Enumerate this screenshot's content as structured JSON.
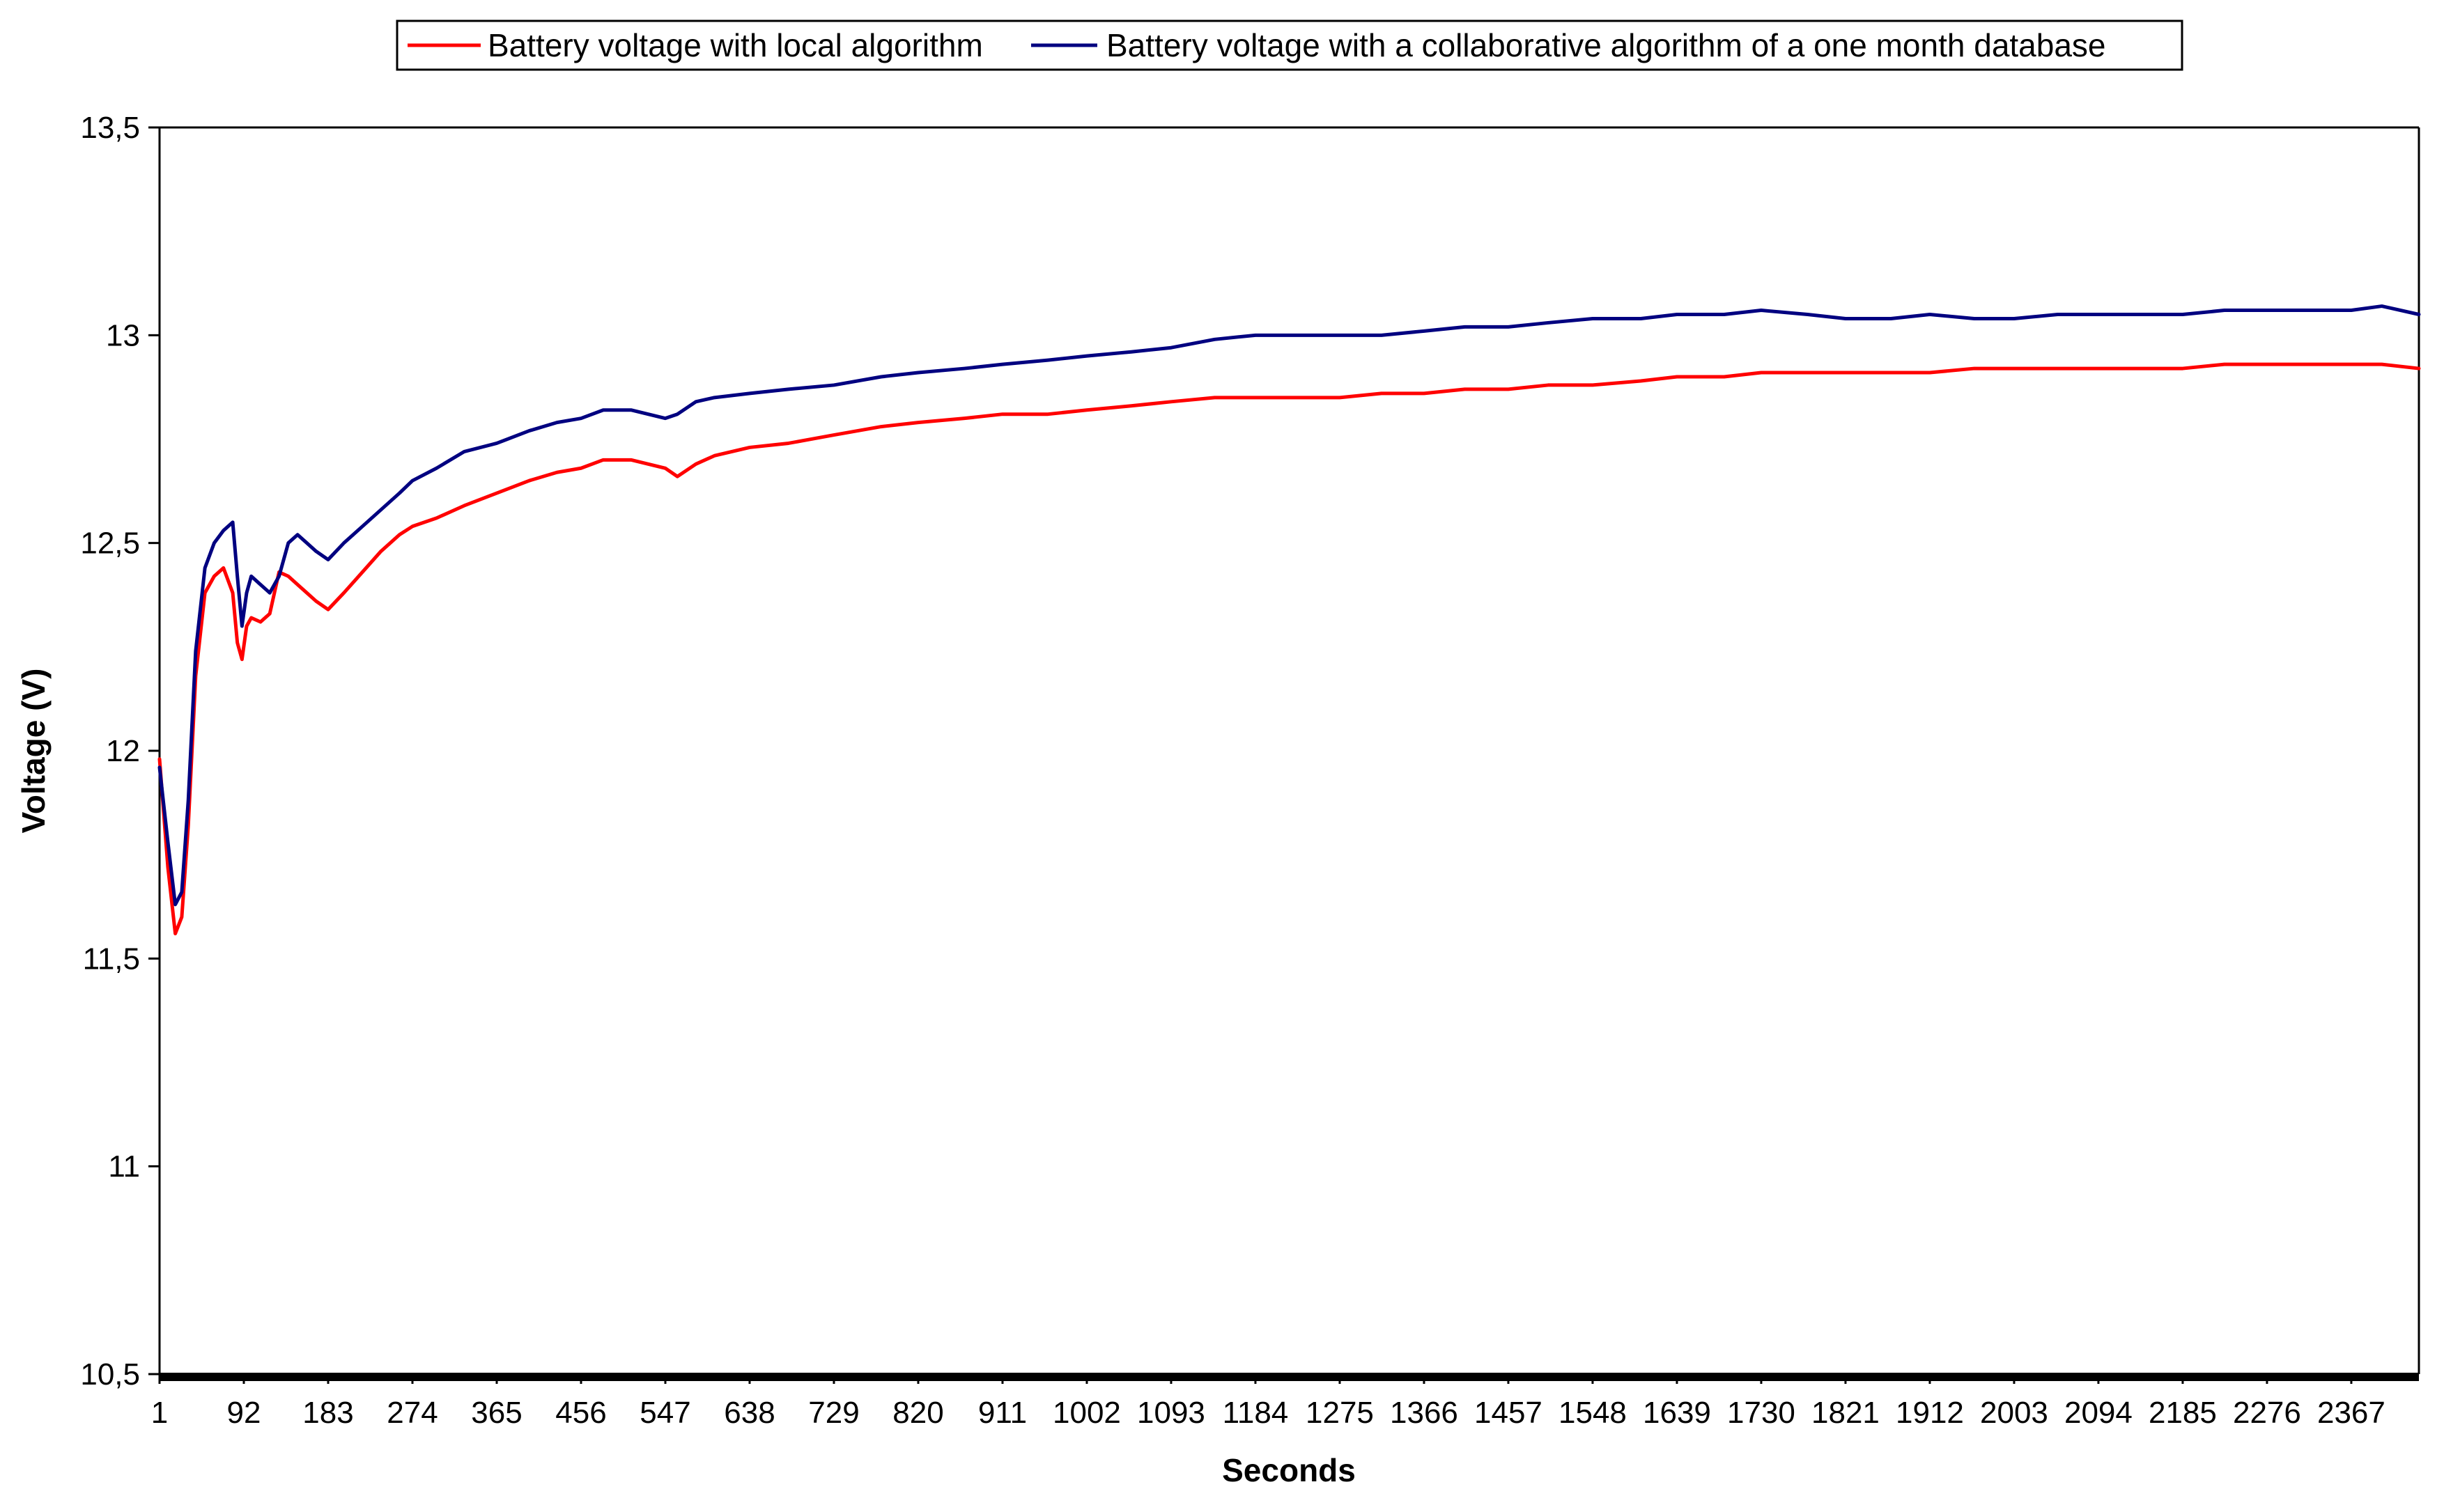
{
  "chart_data": {
    "type": "line",
    "title": "",
    "xlabel": "Seconds",
    "ylabel": "Voltage (V)",
    "xlim": [
      1,
      2440
    ],
    "ylim": [
      10.5,
      13.5
    ],
    "grid": false,
    "legend_position": "top",
    "y_ticks": [
      "10,5",
      "11",
      "11,5",
      "12",
      "12,5",
      "13",
      "13,5"
    ],
    "y_tick_values": [
      10.5,
      11,
      11.5,
      12,
      12.5,
      13,
      13.5
    ],
    "x_ticks": [
      "1",
      "92",
      "183",
      "274",
      "365",
      "456",
      "547",
      "638",
      "729",
      "820",
      "911",
      "1002",
      "1093",
      "1184",
      "1275",
      "1366",
      "1457",
      "1548",
      "1639",
      "1730",
      "1821",
      "1912",
      "2003",
      "2094",
      "2185",
      "2276",
      "2367"
    ],
    "x_tick_values": [
      1,
      92,
      183,
      274,
      365,
      456,
      547,
      638,
      729,
      820,
      911,
      1002,
      1093,
      1184,
      1275,
      1366,
      1457,
      1548,
      1639,
      1730,
      1821,
      1912,
      2003,
      2094,
      2185,
      2276,
      2367
    ],
    "series": [
      {
        "name": "Battery voltage with local algorithm",
        "color": "#ff0000",
        "x": [
          1,
          10,
          18,
          25,
          32,
          40,
          50,
          60,
          70,
          80,
          85,
          90,
          95,
          100,
          110,
          120,
          130,
          140,
          150,
          160,
          170,
          183,
          200,
          220,
          240,
          260,
          274,
          300,
          330,
          365,
          400,
          430,
          456,
          480,
          510,
          547,
          560,
          580,
          600,
          638,
          680,
          729,
          780,
          820,
          870,
          911,
          960,
          1002,
          1050,
          1093,
          1140,
          1184,
          1230,
          1275,
          1320,
          1366,
          1410,
          1457,
          1500,
          1548,
          1600,
          1639,
          1690,
          1730,
          1780,
          1821,
          1870,
          1912,
          1960,
          2003,
          2050,
          2094,
          2140,
          2185,
          2230,
          2276,
          2320,
          2367,
          2400,
          2440
        ],
        "values": [
          11.98,
          11.72,
          11.56,
          11.6,
          11.82,
          12.18,
          12.38,
          12.42,
          12.44,
          12.38,
          12.26,
          12.22,
          12.3,
          12.32,
          12.31,
          12.33,
          12.43,
          12.42,
          12.4,
          12.38,
          12.36,
          12.34,
          12.38,
          12.43,
          12.48,
          12.52,
          12.54,
          12.56,
          12.59,
          12.62,
          12.65,
          12.67,
          12.68,
          12.7,
          12.7,
          12.68,
          12.66,
          12.69,
          12.71,
          12.73,
          12.74,
          12.76,
          12.78,
          12.79,
          12.8,
          12.81,
          12.81,
          12.82,
          12.83,
          12.84,
          12.85,
          12.85,
          12.85,
          12.85,
          12.86,
          12.86,
          12.87,
          12.87,
          12.88,
          12.88,
          12.89,
          12.9,
          12.9,
          12.91,
          12.91,
          12.91,
          12.91,
          12.91,
          12.92,
          12.92,
          12.92,
          12.92,
          12.92,
          12.92,
          12.93,
          12.93,
          12.93,
          12.93,
          12.93,
          12.92
        ]
      },
      {
        "name": "Battery voltage with a collaborative algorithm of a one month database",
        "color": "#000080",
        "x": [
          1,
          10,
          18,
          25,
          32,
          40,
          50,
          60,
          70,
          80,
          85,
          90,
          95,
          100,
          110,
          120,
          130,
          140,
          150,
          160,
          170,
          183,
          200,
          220,
          240,
          260,
          274,
          300,
          330,
          365,
          400,
          430,
          456,
          480,
          510,
          547,
          560,
          580,
          600,
          638,
          680,
          729,
          780,
          820,
          870,
          911,
          960,
          1002,
          1050,
          1093,
          1140,
          1184,
          1230,
          1275,
          1320,
          1366,
          1410,
          1457,
          1500,
          1548,
          1600,
          1639,
          1690,
          1730,
          1780,
          1821,
          1870,
          1912,
          1960,
          2003,
          2050,
          2094,
          2140,
          2185,
          2230,
          2276,
          2320,
          2367,
          2400,
          2440
        ],
        "values": [
          11.96,
          11.78,
          11.63,
          11.66,
          11.88,
          12.24,
          12.44,
          12.5,
          12.53,
          12.55,
          12.42,
          12.3,
          12.38,
          12.42,
          12.4,
          12.38,
          12.42,
          12.5,
          12.52,
          12.5,
          12.48,
          12.46,
          12.5,
          12.54,
          12.58,
          12.62,
          12.65,
          12.68,
          12.72,
          12.74,
          12.77,
          12.79,
          12.8,
          12.82,
          12.82,
          12.8,
          12.81,
          12.84,
          12.85,
          12.86,
          12.87,
          12.88,
          12.9,
          12.91,
          12.92,
          12.93,
          12.94,
          12.95,
          12.96,
          12.97,
          12.99,
          13.0,
          13.0,
          13.0,
          13.0,
          13.01,
          13.02,
          13.02,
          13.03,
          13.04,
          13.04,
          13.05,
          13.05,
          13.06,
          13.05,
          13.04,
          13.04,
          13.05,
          13.04,
          13.04,
          13.05,
          13.05,
          13.05,
          13.05,
          13.06,
          13.06,
          13.06,
          13.06,
          13.07,
          13.05
        ]
      }
    ]
  }
}
